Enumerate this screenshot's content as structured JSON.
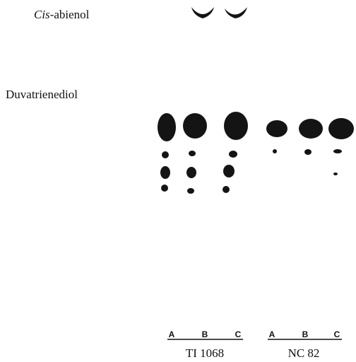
{
  "compounds": [
    {
      "label_italic": "Cis",
      "label_rest": "-abienol"
    },
    {
      "label": "Duvatrienediol"
    }
  ],
  "groups": [
    {
      "name": "TI 1068",
      "lanes": [
        "A",
        "B",
        "C"
      ]
    },
    {
      "name": "NC 82",
      "lanes": [
        "A",
        "B",
        "C"
      ]
    }
  ]
}
